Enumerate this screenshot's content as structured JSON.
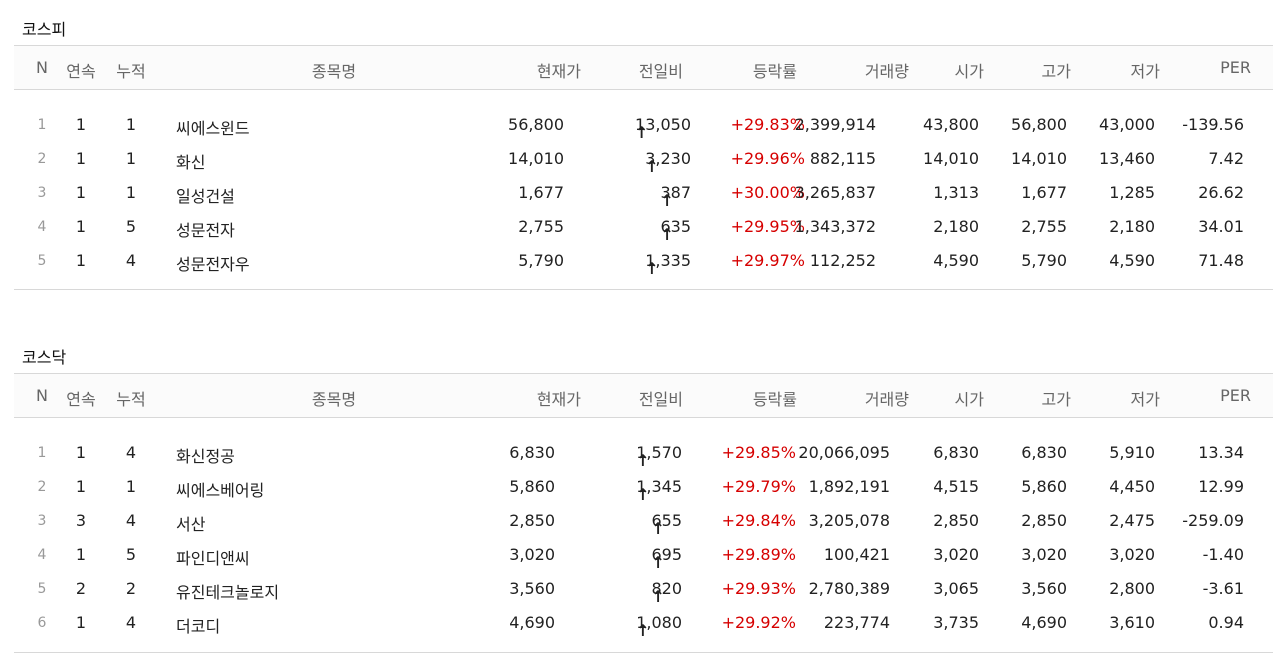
{
  "headers": [
    "N",
    "연속",
    "누적",
    "종목명",
    "현재가",
    "전일비",
    "등락률",
    "거래량",
    "시가",
    "고가",
    "저가",
    "PER"
  ],
  "colors": {
    "up": "#d60000",
    "text": "#222222",
    "line": "#d8d8d8"
  },
  "icons": {
    "up": "up-arrow-icon"
  },
  "kospi": {
    "title": "코스피",
    "rows": [
      {
        "n": "1",
        "yeon": "1",
        "nu": "1",
        "name": "씨에스윈드",
        "price": "56,800",
        "diff": "13,050",
        "rate": "+29.83%",
        "vol": "2,399,914",
        "open": "43,800",
        "high": "56,800",
        "low": "43,000",
        "per": "-139.56"
      },
      {
        "n": "2",
        "yeon": "1",
        "nu": "1",
        "name": "화신",
        "price": "14,010",
        "diff": "3,230",
        "rate": "+29.96%",
        "vol": "882,115",
        "open": "14,010",
        "high": "14,010",
        "low": "13,460",
        "per": "7.42"
      },
      {
        "n": "3",
        "yeon": "1",
        "nu": "1",
        "name": "일성건설",
        "price": "1,677",
        "diff": "387",
        "rate": "+30.00%",
        "vol": "3,265,837",
        "open": "1,313",
        "high": "1,677",
        "low": "1,285",
        "per": "26.62"
      },
      {
        "n": "4",
        "yeon": "1",
        "nu": "5",
        "name": "성문전자",
        "price": "2,755",
        "diff": "635",
        "rate": "+29.95%",
        "vol": "1,343,372",
        "open": "2,180",
        "high": "2,755",
        "low": "2,180",
        "per": "34.01"
      },
      {
        "n": "5",
        "yeon": "1",
        "nu": "4",
        "name": "성문전자우",
        "price": "5,790",
        "diff": "1,335",
        "rate": "+29.97%",
        "vol": "112,252",
        "open": "4,590",
        "high": "5,790",
        "low": "4,590",
        "per": "71.48"
      }
    ]
  },
  "kosdaq": {
    "title": "코스닥",
    "rows": [
      {
        "n": "1",
        "yeon": "1",
        "nu": "4",
        "name": "화신정공",
        "price": "6,830",
        "diff": "1,570",
        "rate": "+29.85%",
        "vol": "20,066,095",
        "open": "6,830",
        "high": "6,830",
        "low": "5,910",
        "per": "13.34"
      },
      {
        "n": "2",
        "yeon": "1",
        "nu": "1",
        "name": "씨에스베어링",
        "price": "5,860",
        "diff": "1,345",
        "rate": "+29.79%",
        "vol": "1,892,191",
        "open": "4,515",
        "high": "5,860",
        "low": "4,450",
        "per": "12.99"
      },
      {
        "n": "3",
        "yeon": "3",
        "nu": "4",
        "name": "서산",
        "price": "2,850",
        "diff": "655",
        "rate": "+29.84%",
        "vol": "3,205,078",
        "open": "2,850",
        "high": "2,850",
        "low": "2,475",
        "per": "-259.09"
      },
      {
        "n": "4",
        "yeon": "1",
        "nu": "5",
        "name": "파인디앤씨",
        "price": "3,020",
        "diff": "695",
        "rate": "+29.89%",
        "vol": "100,421",
        "open": "3,020",
        "high": "3,020",
        "low": "3,020",
        "per": "-1.40"
      },
      {
        "n": "5",
        "yeon": "2",
        "nu": "2",
        "name": "유진테크놀로지",
        "price": "3,560",
        "diff": "820",
        "rate": "+29.93%",
        "vol": "2,780,389",
        "open": "3,065",
        "high": "3,560",
        "low": "2,800",
        "per": "-3.61"
      },
      {
        "n": "6",
        "yeon": "1",
        "nu": "4",
        "name": "더코디",
        "price": "4,690",
        "diff": "1,080",
        "rate": "+29.92%",
        "vol": "223,774",
        "open": "3,735",
        "high": "4,690",
        "low": "3,610",
        "per": "0.94"
      }
    ]
  }
}
